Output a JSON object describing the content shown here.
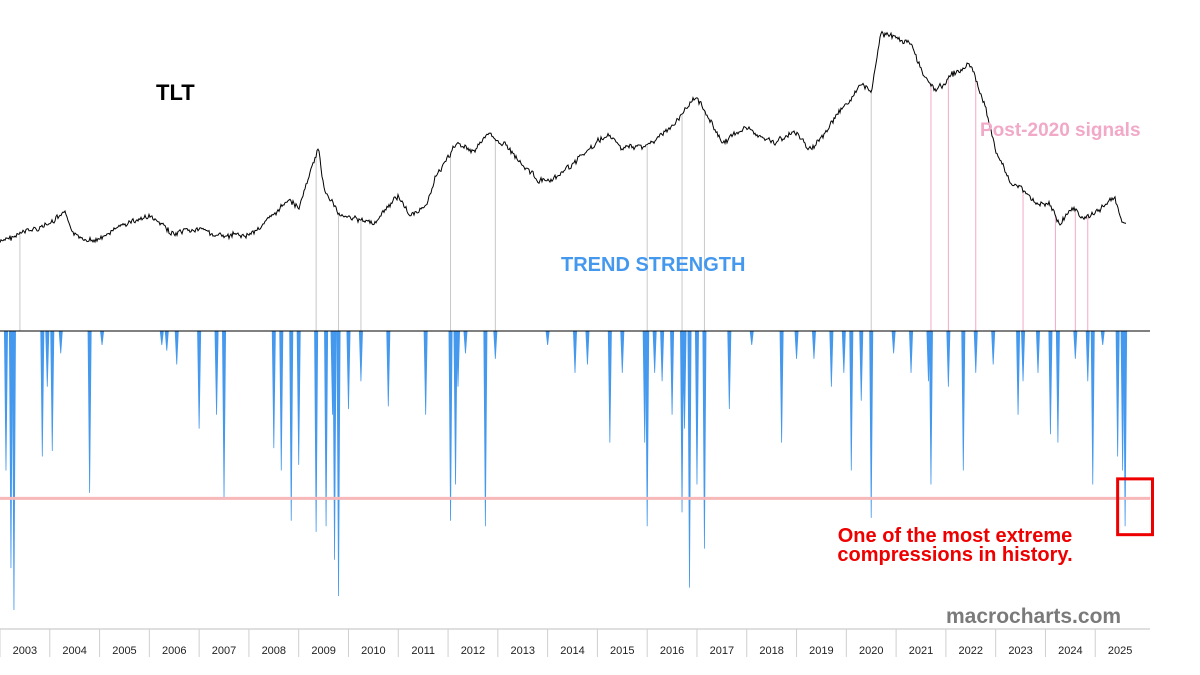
{
  "colors": {
    "price_line": "#000000",
    "trend_bars": "#4499ee",
    "threshold_line": "#f6b8b8",
    "post2020_lines": "#f1a9c7",
    "signal_lines": "#c8c8c8",
    "annotation": "#ee0000",
    "highlight_box": "#ee0000",
    "trend_label": "#4499ee",
    "post_label": "#f1a9c7",
    "brand": "#7a7a7a"
  },
  "labels": {
    "price_title": "TLT",
    "trend_title": "TREND STRENGTH",
    "post_signals": "Post-2020 signals",
    "annotation_line1": "One of the most extreme",
    "annotation_line2": "compressions in history.",
    "brand": "macrocharts.com"
  },
  "chart_data": [
    {
      "type": "line",
      "name": "TLT",
      "title": "TLT",
      "x": [
        2002.5,
        2003.0,
        2003.5,
        2003.8,
        2004.0,
        2004.5,
        2005.0,
        2005.5,
        2006.0,
        2006.5,
        2007.0,
        2007.5,
        2008.0,
        2008.3,
        2008.5,
        2008.9,
        2009.0,
        2009.3,
        2009.5,
        2009.8,
        2010.0,
        2010.5,
        2010.7,
        2011.0,
        2011.3,
        2011.7,
        2012.0,
        2012.3,
        2012.6,
        2013.0,
        2013.3,
        2013.6,
        2014.0,
        2014.5,
        2014.7,
        2015.0,
        2015.5,
        2016.0,
        2016.5,
        2016.7,
        2017.0,
        2017.5,
        2018.0,
        2018.5,
        2018.8,
        2019.0,
        2019.5,
        2019.8,
        2020.0,
        2020.2,
        2020.5,
        2020.8,
        2021.0,
        2021.3,
        2021.7,
        2022.0,
        2022.3,
        2022.5,
        2022.8,
        2023.0,
        2023.3,
        2023.6,
        2023.8,
        2024.0,
        2024.3,
        2024.6,
        2024.9,
        2025.0,
        2025.1
      ],
      "y": [
        82,
        86,
        89,
        93,
        84,
        83,
        89,
        92,
        85,
        87,
        84,
        85,
        92,
        99,
        95,
        118,
        103,
        93,
        92,
        90,
        89,
        100,
        93,
        94,
        109,
        120,
        117,
        123,
        120,
        112,
        106,
        105,
        112,
        120,
        123,
        118,
        119,
        126,
        138,
        131,
        120,
        126,
        120,
        124,
        117,
        122,
        135,
        142,
        139,
        162,
        160,
        158,
        148,
        140,
        147,
        150,
        133,
        117,
        105,
        103,
        97,
        96,
        89,
        95,
        91,
        95,
        99,
        92,
        89
      ]
    },
    {
      "type": "bar",
      "name": "Trend Strength",
      "title": "TREND STRENGTH",
      "ylim": [
        -100,
        0
      ],
      "threshold": -60,
      "x": [
        2002.62,
        2002.72,
        2002.78,
        2003.35,
        2003.45,
        2003.55,
        2003.72,
        2004.3,
        2004.55,
        2005.75,
        2005.85,
        2006.05,
        2006.5,
        2006.85,
        2007.0,
        2008.0,
        2008.15,
        2008.35,
        2008.5,
        2008.85,
        2009.05,
        2009.18,
        2009.22,
        2009.3,
        2009.5,
        2009.75,
        2010.3,
        2011.05,
        2011.55,
        2011.65,
        2011.7,
        2011.85,
        2012.25,
        2012.45,
        2013.5,
        2014.05,
        2014.3,
        2014.75,
        2015.0,
        2015.45,
        2015.5,
        2015.65,
        2015.8,
        2016.0,
        2016.2,
        2016.25,
        2016.35,
        2016.5,
        2016.65,
        2017.15,
        2017.6,
        2018.2,
        2018.5,
        2018.85,
        2019.2,
        2019.45,
        2019.6,
        2019.8,
        2020.0,
        2020.45,
        2020.8,
        2021.15,
        2021.2,
        2021.55,
        2021.85,
        2022.1,
        2022.45,
        2022.95,
        2023.05,
        2023.35,
        2023.6,
        2023.75,
        2024.1,
        2024.35,
        2024.45,
        2024.65,
        2024.95,
        2025.05,
        2025.1
      ],
      "values": [
        -50,
        -85,
        -100,
        -45,
        -20,
        -43,
        -8,
        -58,
        -5,
        -5,
        -7,
        -12,
        -35,
        -30,
        -60,
        -42,
        -50,
        -68,
        -48,
        -72,
        -70,
        -30,
        -82,
        -95,
        -28,
        -18,
        -27,
        -30,
        -68,
        -55,
        -20,
        -8,
        -70,
        -10,
        -5,
        -15,
        -12,
        -40,
        -15,
        -40,
        -70,
        -15,
        -18,
        -30,
        -65,
        -35,
        -92,
        -55,
        -78,
        -28,
        -5,
        -40,
        -10,
        -10,
        -20,
        -15,
        -50,
        -25,
        -67,
        -8,
        -15,
        -18,
        -55,
        -20,
        -50,
        -15,
        -12,
        -30,
        -18,
        -15,
        -37,
        -40,
        -10,
        -18,
        -55,
        -5,
        -45,
        -50,
        -70
      ]
    }
  ],
  "x_axis": {
    "min": 2002.5,
    "max": 2025.6,
    "tick_labels": [
      "2003",
      "2004",
      "2005",
      "2006",
      "2007",
      "2008",
      "2009",
      "2010",
      "2011",
      "2012",
      "2013",
      "2014",
      "2015",
      "2016",
      "2017",
      "2018",
      "2019",
      "2020",
      "2021",
      "2022",
      "2023",
      "2024",
      "2025"
    ]
  },
  "signals": {
    "gray": [
      2002.9,
      2008.85,
      2009.3,
      2009.75,
      2011.55,
      2012.45,
      2015.5,
      2016.2,
      2016.65,
      2020.0
    ],
    "pink": [
      2021.2,
      2021.55,
      2022.1,
      2023.05,
      2023.7,
      2024.1,
      2024.35
    ]
  },
  "highlight": {
    "x_from": 2024.95,
    "x_to": 2025.65,
    "y_from": -53,
    "y_to": -73
  },
  "price_ylim": [
    60,
    165
  ]
}
